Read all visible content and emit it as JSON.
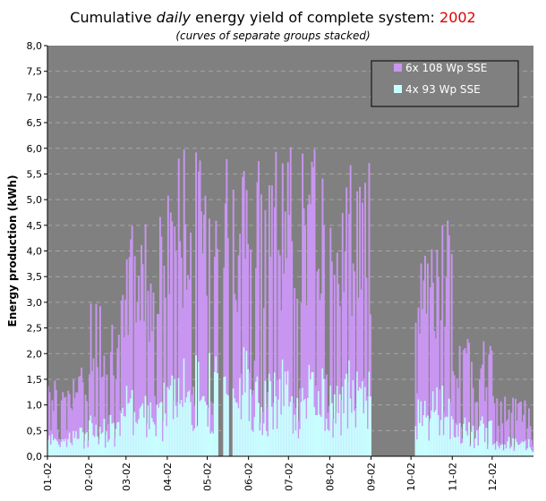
{
  "title": {
    "part1": "Cumulative ",
    "part2": "daily",
    "part3": " energy yield of complete system: ",
    "year": "2002"
  },
  "subtitle": "(curves of separate groups stacked)",
  "colors": {
    "plot_bg": "#808080",
    "grid": "#a6a6a6",
    "series_top": "#c896f0",
    "series_bottom": "#c8ffff",
    "year_text": "#e00000"
  },
  "chart_data": {
    "type": "area",
    "ylabel": "Energy production (kWh)",
    "xlabel": "",
    "ylim": [
      0,
      8
    ],
    "yticks": [
      "0,0",
      "0,5",
      "1,0",
      "1,5",
      "2,0",
      "2,5",
      "3,0",
      "3,5",
      "4,0",
      "4,5",
      "5,0",
      "5,5",
      "6,0",
      "6,5",
      "7,0",
      "7,5",
      "8,0"
    ],
    "xticks": [
      "01-02",
      "02-02",
      "03-02",
      "04-02",
      "05-02",
      "06-02",
      "07-02",
      "08-02",
      "09-02",
      "10-02",
      "11-02",
      "12-02"
    ],
    "grid": true,
    "legend_position": "top-right",
    "series": [
      {
        "name": "6x 108 Wp SSE",
        "role": "top"
      },
      {
        "name": "4x 93 Wp SSE",
        "role": "bottom"
      }
    ],
    "monthly_peak_total_kwh": [
      1.8,
      3.2,
      4.8,
      6.05,
      6.25,
      6.3,
      6.05,
      5.9,
      0.0,
      4.75,
      2.3,
      1.2
    ],
    "monthly_peak_bottom_kwh": [
      0.6,
      1.0,
      1.5,
      2.1,
      2.2,
      1.9,
      1.9,
      1.9,
      0.0,
      1.4,
      0.8,
      0.4
    ],
    "gaps_kwh_zero": [
      "05-02 second week",
      "09-02 to 10-02"
    ]
  }
}
